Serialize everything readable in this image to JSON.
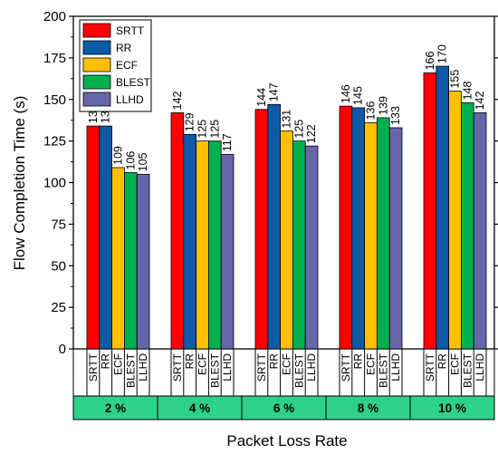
{
  "chart_data": {
    "type": "bar",
    "xlabel": "Packet Loss Rate",
    "ylabel": "Flow Completion Time (s)",
    "ylim": [
      0,
      200
    ],
    "yticks": [
      0,
      25,
      50,
      75,
      100,
      125,
      150,
      175,
      200
    ],
    "groups": [
      "2 %",
      "4 %",
      "6 %",
      "8 %",
      "10 %"
    ],
    "series": [
      {
        "name": "SRTT",
        "color": "#ff0000",
        "values": [
          134,
          142,
          144,
          146,
          166
        ]
      },
      {
        "name": "RR",
        "color": "#0d5aa7",
        "values": [
          134,
          129,
          147,
          145,
          170
        ]
      },
      {
        "name": "ECF",
        "color": "#ffc000",
        "values": [
          109,
          125,
          131,
          136,
          155
        ]
      },
      {
        "name": "BLEST",
        "color": "#00b050",
        "values": [
          106,
          125,
          125,
          139,
          148
        ]
      },
      {
        "name": "LLHD",
        "color": "#6666aa",
        "values": [
          105,
          117,
          122,
          133,
          142
        ]
      }
    ],
    "group_band_color": "#2ed18a",
    "legend_position": "top-left",
    "grid": false
  }
}
